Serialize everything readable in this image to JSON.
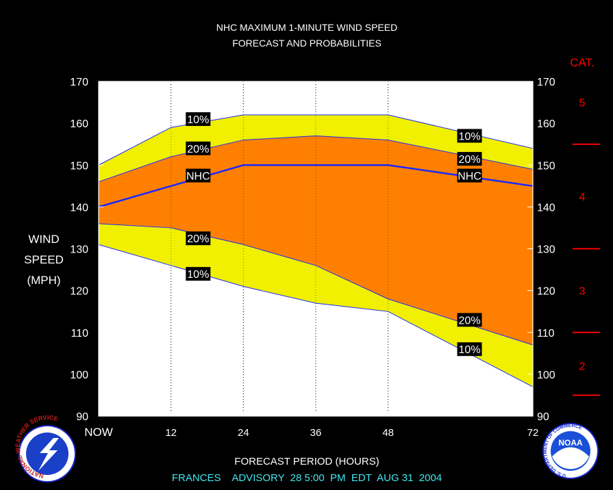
{
  "chart_data": {
    "type": "area",
    "title": "NHC MAXIMUM 1-MINUTE WIND SPEED",
    "subtitle": "FORECAST AND PROBABILITIES",
    "xlabel": "FORECAST PERIOD (HOURS)",
    "ylabel_lines": [
      "WIND",
      "SPEED",
      "(MPH)"
    ],
    "footer": "FRANCES    ADVISORY  28 5:00  PM  EDT  AUG 31  2004",
    "xlim": [
      0,
      72
    ],
    "ylim": [
      90,
      170
    ],
    "x_ticks": [
      {
        "value": 0,
        "label": "NOW"
      },
      {
        "value": 12,
        "label": "12"
      },
      {
        "value": 24,
        "label": "24"
      },
      {
        "value": 36,
        "label": "36"
      },
      {
        "value": 48,
        "label": "48"
      },
      {
        "value": 72,
        "label": "72"
      }
    ],
    "y_ticks": [
      90,
      100,
      110,
      120,
      130,
      140,
      150,
      160,
      170
    ],
    "y_tick_labels": [
      "90",
      "100",
      "110",
      "120",
      "130",
      "140",
      "150",
      "160",
      "170"
    ],
    "x": [
      0,
      12,
      24,
      36,
      48,
      72
    ],
    "series": [
      {
        "name": "10%",
        "bound": "upper",
        "values": [
          150,
          159,
          162,
          162,
          162,
          154
        ]
      },
      {
        "name": "20%",
        "bound": "upper",
        "values": [
          146,
          152,
          156,
          157,
          156,
          149
        ]
      },
      {
        "name": "NHC",
        "values": [
          140,
          145,
          150,
          150,
          150,
          145
        ]
      },
      {
        "name": "20%",
        "bound": "lower",
        "values": [
          136,
          135,
          131,
          126,
          118,
          107
        ]
      },
      {
        "name": "10%",
        "bound": "lower",
        "values": [
          131,
          126,
          121,
          117,
          115,
          97
        ]
      }
    ],
    "band_labels": [
      {
        "text": "10%",
        "x": 16.5,
        "y": 161
      },
      {
        "text": "20%",
        "x": 16.5,
        "y": 154
      },
      {
        "text": "NHC",
        "x": 16.5,
        "y": 147.5
      },
      {
        "text": "20%",
        "x": 16.5,
        "y": 132.5
      },
      {
        "text": "10%",
        "x": 16.5,
        "y": 124
      },
      {
        "text": "10%",
        "x": 61.5,
        "y": 157
      },
      {
        "text": "20%",
        "x": 61.5,
        "y": 151.5
      },
      {
        "text": "NHC",
        "x": 61.5,
        "y": 147.5
      },
      {
        "text": "20%",
        "x": 61.5,
        "y": 113
      },
      {
        "text": "10%",
        "x": 61.5,
        "y": 106
      }
    ],
    "category_scale": {
      "title": "CAT.",
      "boundaries": [
        155,
        130,
        110,
        95
      ],
      "labels": [
        {
          "text": "5",
          "y": 165
        },
        {
          "text": "4",
          "y": 142.5
        },
        {
          "text": "3",
          "y": 120
        },
        {
          "text": "2",
          "y": 102
        }
      ]
    },
    "colors": {
      "background": "#000000",
      "plot_background": "#ffffff",
      "outer_band": "#f0f000",
      "inner_band": "#ff8000",
      "nhc_line": "#1a28ff",
      "band_edge": "#1a28ff",
      "category": "#ff0000",
      "footer": "#40e8f0",
      "label_box": "#000000",
      "text": "#ffffff"
    },
    "grid": "vertical dotted"
  },
  "logos": {
    "left": {
      "name": "nws-logo",
      "text": "NATIONAL WEATHER SERVICE"
    },
    "right": {
      "name": "noaa-logo",
      "center_text": "NOAA",
      "ring_text": "U.S. DEPARTMENT OF COMMERCE"
    }
  }
}
